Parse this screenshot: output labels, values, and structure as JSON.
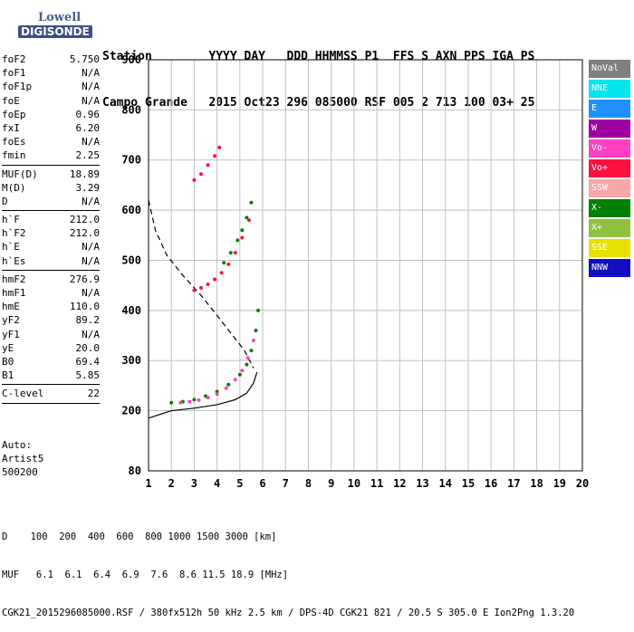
{
  "logo": {
    "line1": "Lowell",
    "line2": "DIGISONDE"
  },
  "header": {
    "line1": "Station        YYYY DAY   DDD HHMMSS P1  FFS S AXN PPS IGA PS",
    "line2": "Campo Grande   2015 Oct23 296 085000 RSF 005 2 713 100 03+ 25"
  },
  "params": [
    {
      "name": "foF2",
      "value": "5.750"
    },
    {
      "name": "foF1",
      "value": "N/A"
    },
    {
      "name": "foF1p",
      "value": "N/A"
    },
    {
      "name": "foE",
      "value": "N/A"
    },
    {
      "name": "foEp",
      "value": "0.96"
    },
    {
      "name": "fxI",
      "value": "6.20"
    },
    {
      "name": "foEs",
      "value": "N/A"
    },
    {
      "name": "fmin",
      "value": "2.25"
    },
    {
      "sep": true
    },
    {
      "name": "MUF(D)",
      "value": "18.89"
    },
    {
      "name": "M(D)",
      "value": "3.29"
    },
    {
      "name": "D",
      "value": "N/A"
    },
    {
      "sep": true
    },
    {
      "name": "h`F",
      "value": "212.0"
    },
    {
      "name": "h`F2",
      "value": "212.0"
    },
    {
      "name": "h`E",
      "value": "N/A"
    },
    {
      "name": "h`Es",
      "value": "N/A"
    },
    {
      "sep": true
    },
    {
      "name": "hmF2",
      "value": "276.9"
    },
    {
      "name": "hmF1",
      "value": "N/A"
    },
    {
      "name": "hmE",
      "value": "110.0"
    },
    {
      "name": "yF2",
      "value": "89.2"
    },
    {
      "name": "yF1",
      "value": "N/A"
    },
    {
      "name": "yE",
      "value": "20.0"
    },
    {
      "name": "B0",
      "value": "69.4"
    },
    {
      "name": "B1",
      "value": "5.85"
    },
    {
      "sep": true
    },
    {
      "name": "C-level",
      "value": "22"
    },
    {
      "sep": true
    }
  ],
  "auto": {
    "line1": "Auto:",
    "line2": "Artist5",
    "line3": "500200"
  },
  "legend": [
    {
      "label": "NoVal",
      "color": "#808080"
    },
    {
      "label": "NNE",
      "color": "#00e5ee"
    },
    {
      "label": "E",
      "color": "#1e90ff"
    },
    {
      "label": "W",
      "color": "#a000a0"
    },
    {
      "label": "Vo-",
      "color": "#ff40c0"
    },
    {
      "label": "Vo+",
      "color": "#ff1040"
    },
    {
      "label": "SSW",
      "color": "#f4a8a8"
    },
    {
      "label": "X-",
      "color": "#008000"
    },
    {
      "label": "X+",
      "color": "#90c040"
    },
    {
      "label": "SSE",
      "color": "#e8e000"
    },
    {
      "label": "NNW",
      "color": "#1010c0"
    }
  ],
  "footer": {
    "d_line": "D    100  200  400  600  800 1000 1500 3000 [km]",
    "muf_line": "MUF   6.1  6.1  6.4  6.9  7.6  8.6 11.5 18.9 [MHz]",
    "file_line": "CGK21_2015296085000.RSF / 380fx512h 50 kHz 2.5 km / DPS-4D CGK21 821 / 20.5 S 305.0 E Ion2Png 1.3.20"
  },
  "chart_data": {
    "type": "scatter",
    "title": "",
    "xlabel": "",
    "ylabel": "",
    "xlim": [
      1,
      20
    ],
    "ylim": [
      80,
      900
    ],
    "xticks": [
      1,
      2,
      3,
      4,
      5,
      6,
      7,
      8,
      9,
      10,
      11,
      12,
      13,
      14,
      15,
      16,
      17,
      18,
      19,
      20
    ],
    "yticks": [
      80,
      200,
      300,
      400,
      500,
      600,
      700,
      800,
      900
    ],
    "grid": true,
    "legend_position": "right",
    "series": [
      {
        "name": "X-",
        "color": "#008000",
        "x": [
          2.0,
          2.5,
          3.0,
          3.5,
          4.0,
          4.5,
          5.0,
          5.3,
          5.5,
          5.7,
          5.8
        ],
        "y": [
          216,
          218,
          222,
          229,
          238,
          252,
          272,
          292,
          320,
          360,
          400
        ]
      },
      {
        "name": "Vo-",
        "color": "#ff40c0",
        "x": [
          2.4,
          2.8,
          3.2,
          3.6,
          4.0,
          4.4,
          4.8,
          5.1,
          5.35,
          5.6
        ],
        "y": [
          216,
          218,
          221,
          226,
          233,
          245,
          262,
          280,
          305,
          340
        ]
      },
      {
        "name": "Vo+",
        "color": "#ff1040",
        "x": [
          3.0,
          3.3,
          3.6,
          3.9,
          4.2,
          4.5,
          4.8,
          5.1,
          5.4
        ],
        "y": [
          440,
          445,
          452,
          462,
          475,
          492,
          515,
          545,
          580
        ]
      },
      {
        "name": "X-",
        "color": "#008000",
        "x": [
          4.3,
          4.6,
          4.9,
          5.1,
          5.3,
          5.5
        ],
        "y": [
          495,
          515,
          540,
          560,
          585,
          615
        ]
      },
      {
        "name": "Vo+",
        "color": "#ff1040",
        "x": [
          3.0,
          3.3,
          3.6,
          3.9,
          4.1
        ],
        "y": [
          660,
          672,
          690,
          708,
          725
        ]
      }
    ],
    "profile_curve": {
      "x": [
        1.0,
        2.0,
        3.0,
        4.0,
        4.8,
        5.3,
        5.6,
        5.75
      ],
      "y": [
        185,
        200,
        205,
        212,
        222,
        235,
        255,
        277
      ]
    },
    "dashed_curve": {
      "x": [
        1.0,
        1.3,
        1.8,
        2.5,
        3.3,
        4.0,
        4.6,
        5.2,
        5.6
      ],
      "y": [
        620,
        560,
        510,
        470,
        430,
        390,
        355,
        320,
        285
      ]
    }
  }
}
